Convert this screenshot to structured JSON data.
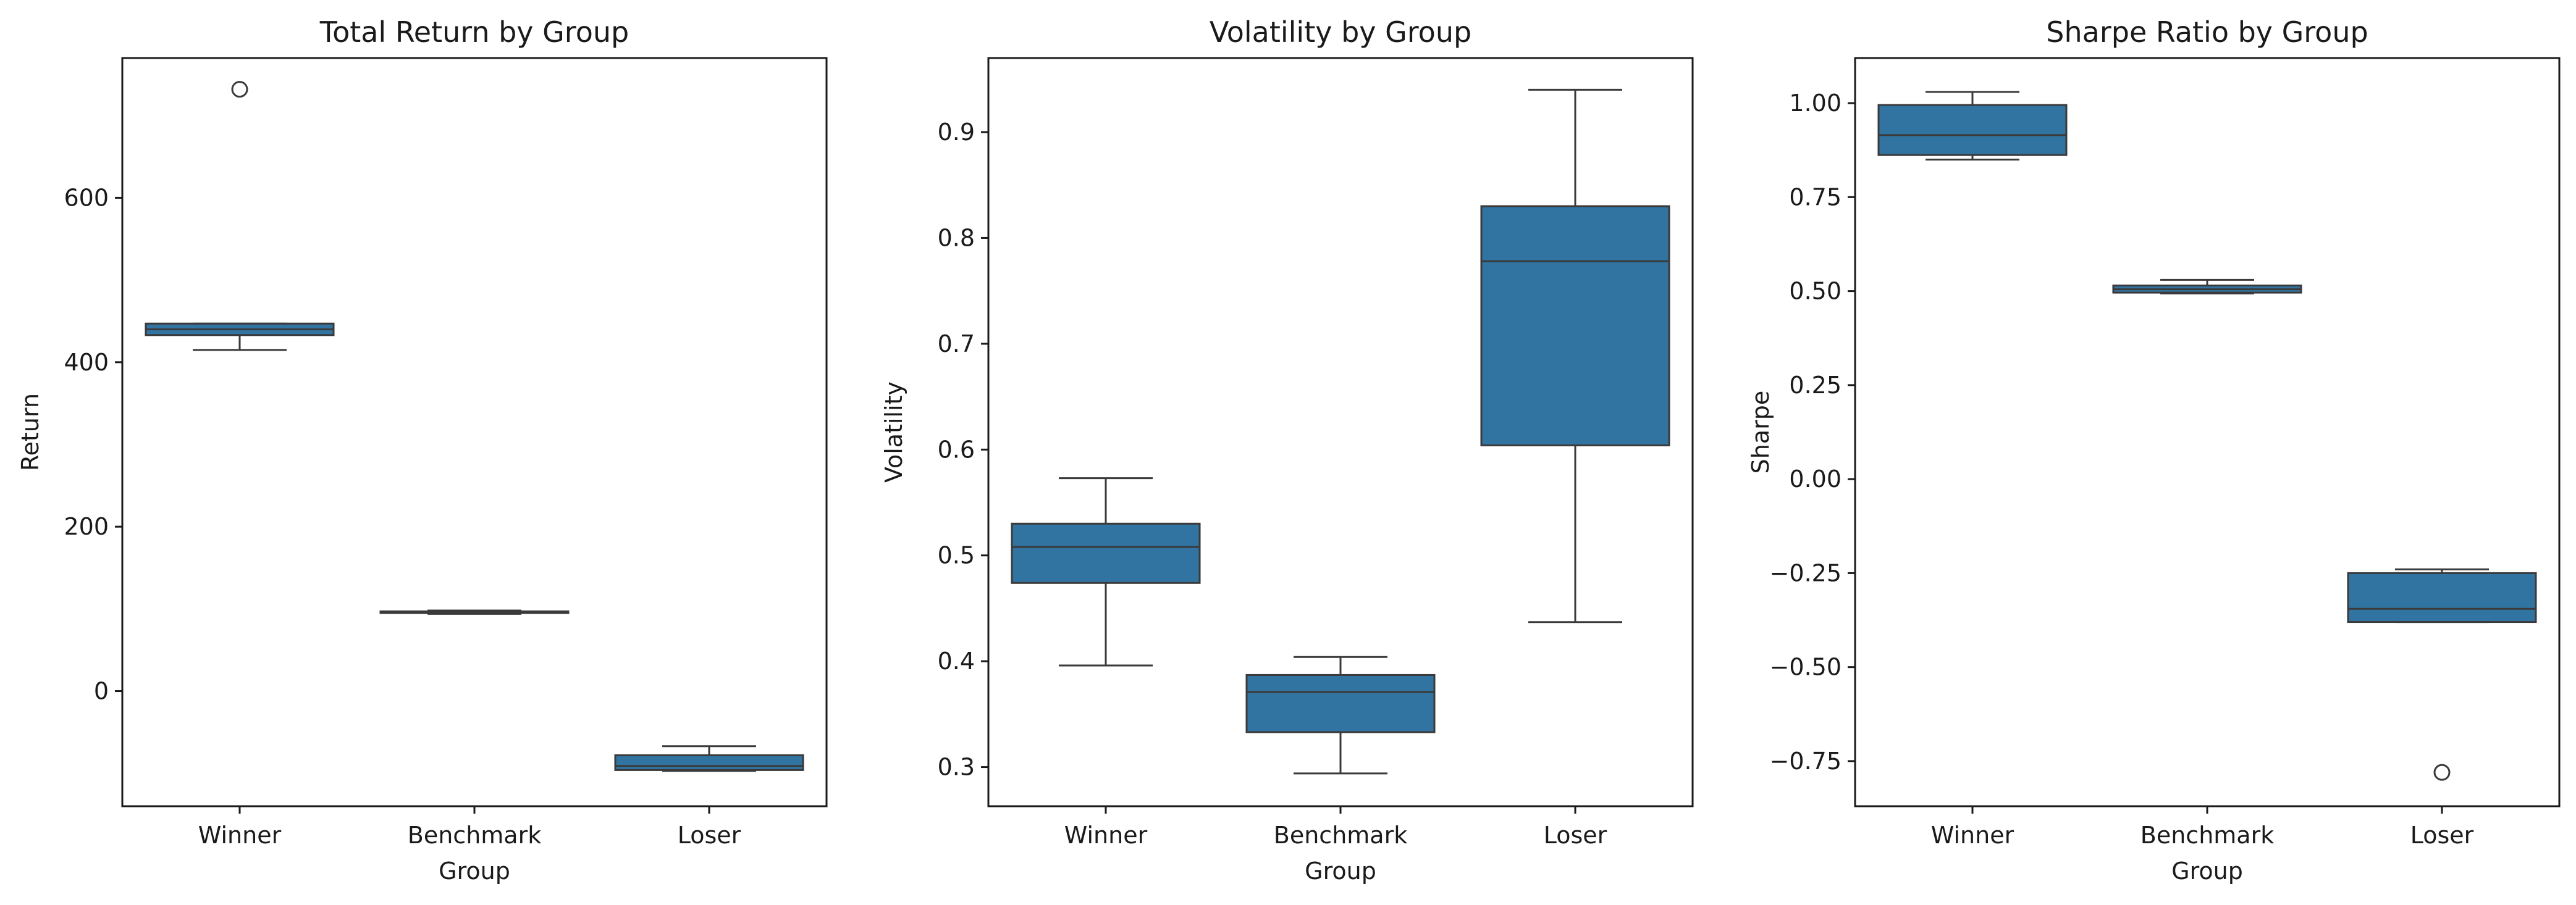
{
  "colors": {
    "box": "#3274a1",
    "line": "#3a3a3a",
    "text": "#1a1a1a"
  },
  "chart_data": [
    {
      "type": "box",
      "title": "Total Return by Group",
      "xlabel": "Group",
      "ylabel": "Return",
      "categories": [
        "Winner",
        "Benchmark",
        "Loser"
      ],
      "ylim": [
        -140,
        770
      ],
      "yticks": [
        0,
        200,
        400,
        600
      ],
      "ytick_labels": [
        "0",
        "200",
        "400",
        "600"
      ],
      "boxes": [
        {
          "whislo": 415,
          "q1": 433,
          "med": 440,
          "q3": 447,
          "whishi": 447,
          "outliers": [
            732
          ]
        },
        {
          "whislo": 94,
          "q1": 95,
          "med": 96,
          "q3": 97,
          "whishi": 98,
          "outliers": []
        },
        {
          "whislo": -97,
          "q1": -96,
          "med": -91,
          "q3": -78,
          "whishi": -67,
          "outliers": []
        }
      ]
    },
    {
      "type": "box",
      "title": "Volatility by Group",
      "xlabel": "Group",
      "ylabel": "Volatility",
      "categories": [
        "Winner",
        "Benchmark",
        "Loser"
      ],
      "ylim": [
        0.263,
        0.97
      ],
      "yticks": [
        0.3,
        0.4,
        0.5,
        0.6,
        0.7,
        0.8,
        0.9
      ],
      "ytick_labels": [
        "0.3",
        "0.4",
        "0.5",
        "0.6",
        "0.7",
        "0.8",
        "0.9"
      ],
      "boxes": [
        {
          "whislo": 0.396,
          "q1": 0.474,
          "med": 0.508,
          "q3": 0.53,
          "whishi": 0.573,
          "outliers": []
        },
        {
          "whislo": 0.294,
          "q1": 0.333,
          "med": 0.371,
          "q3": 0.387,
          "whishi": 0.404,
          "outliers": []
        },
        {
          "whislo": 0.437,
          "q1": 0.604,
          "med": 0.778,
          "q3": 0.83,
          "whishi": 0.94,
          "outliers": []
        }
      ]
    },
    {
      "type": "box",
      "title": "Sharpe Ratio by Group",
      "xlabel": "Group",
      "ylabel": "Sharpe",
      "categories": [
        "Winner",
        "Benchmark",
        "Loser"
      ],
      "ylim": [
        -0.87,
        1.12
      ],
      "yticks": [
        -0.75,
        -0.5,
        -0.25,
        0.0,
        0.25,
        0.5,
        0.75,
        1.0
      ],
      "ytick_labels": [
        "−0.75",
        "−0.50",
        "−0.25",
        "0.00",
        "0.25",
        "0.50",
        "0.75",
        "1.00"
      ],
      "boxes": [
        {
          "whislo": 0.85,
          "q1": 0.862,
          "med": 0.915,
          "q3": 0.995,
          "whishi": 1.03,
          "outliers": []
        },
        {
          "whislo": 0.494,
          "q1": 0.496,
          "med": 0.505,
          "q3": 0.515,
          "whishi": 0.53,
          "outliers": []
        },
        {
          "whislo": -0.38,
          "q1": -0.38,
          "med": -0.345,
          "q3": -0.25,
          "whishi": -0.24,
          "outliers": [
            -0.78
          ]
        }
      ]
    }
  ]
}
